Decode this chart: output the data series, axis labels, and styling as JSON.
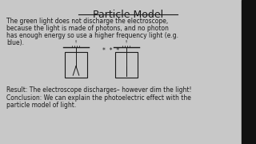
{
  "title": "Particle Model",
  "background_color": "#c8c8c8",
  "text_color": "#1a1a1a",
  "body_lines": [
    "The green light does not discharge the electroscope,",
    "because the light is made of photons, and no photon",
    "has enough energy so use a higher frequency light (e.g.",
    "blue)."
  ],
  "dots": "*  *  *",
  "result_line": "Result: The electroscope discharges– however dim the light!",
  "conclusion_line1": "Conclusion: We can explain the photoelectric effect with the",
  "conclusion_line2": "particle model of light.",
  "fig_width": 3.2,
  "fig_height": 1.8,
  "dpi": 100
}
